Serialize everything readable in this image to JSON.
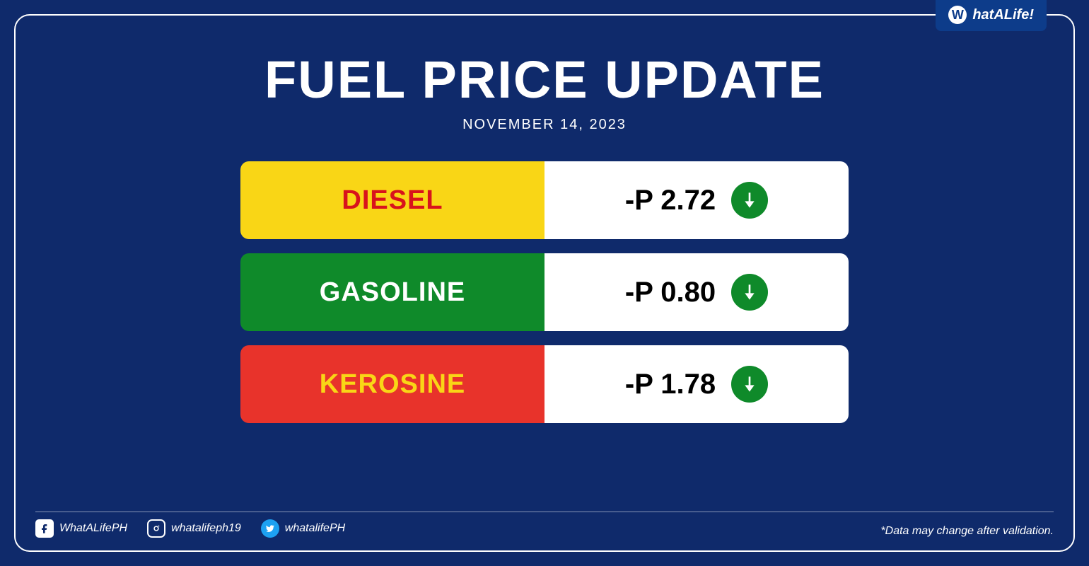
{
  "brand": {
    "badge_text": "hatALife!",
    "badge_w": "W",
    "badge_bg": "#0d3c8a",
    "badge_text_color": "#ffffff"
  },
  "header": {
    "title": "FUEL PRICE UPDATE",
    "date": "NOVEMBER 14, 2023"
  },
  "colors": {
    "page_bg": "#0f2a6b",
    "frame_border": "#ffffff",
    "right_bg": "#ffffff",
    "price_text": "#000000",
    "arrow_down_bg": "#0f8a2a",
    "arrow_icon": "#ffffff"
  },
  "fuels": [
    {
      "name": "DIESEL",
      "price": "-P 2.72",
      "direction": "down",
      "left_bg": "#f9d616",
      "label_color": "#d8131c"
    },
    {
      "name": "GASOLINE",
      "price": "-P 0.80",
      "direction": "down",
      "left_bg": "#0f8a2a",
      "label_color": "#ffffff"
    },
    {
      "name": "KEROSINE",
      "price": "-P 1.78",
      "direction": "down",
      "left_bg": "#e8332b",
      "label_color": "#f9d616"
    }
  ],
  "socials": {
    "facebook": {
      "handle": "WhatALifePH",
      "icon_bg": "#ffffff",
      "icon_fg": "#0f2a6b"
    },
    "instagram": {
      "handle": "whatalifeph19"
    },
    "twitter": {
      "handle": "whatalifePH"
    }
  },
  "disclaimer": "*Data may change after validation."
}
